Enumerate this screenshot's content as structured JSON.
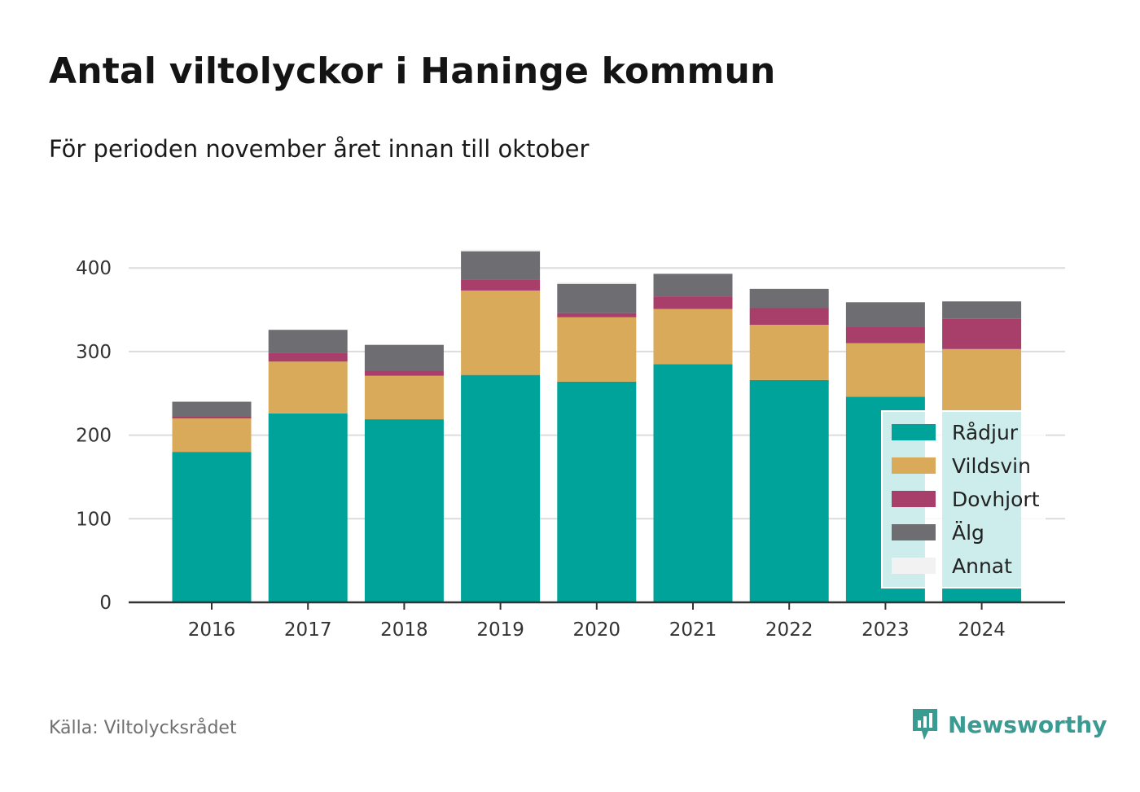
{
  "title": "Antal viltolyckor i Haninge kommun",
  "subtitle": "För perioden november året innan till oktober",
  "source": "Källa: Viltolycksrådet",
  "brand": {
    "name": "Newsworthy",
    "icon": "newsworthy-logo-icon",
    "color": "#3a9b93"
  },
  "chart_data": {
    "type": "bar",
    "stacked": true,
    "categories": [
      "2016",
      "2017",
      "2018",
      "2019",
      "2020",
      "2021",
      "2022",
      "2023",
      "2024"
    ],
    "series": [
      {
        "name": "Rådjur",
        "color": "#00a39a",
        "values": [
          180,
          226,
          219,
          272,
          264,
          285,
          266,
          246,
          229
        ]
      },
      {
        "name": "Vildsvin",
        "color": "#d9aa5a",
        "values": [
          40,
          62,
          52,
          101,
          77,
          66,
          66,
          64,
          74
        ]
      },
      {
        "name": "Dovhjort",
        "color": "#a83e6a",
        "values": [
          2,
          10,
          6,
          13,
          5,
          15,
          20,
          20,
          36
        ]
      },
      {
        "name": "Älg",
        "color": "#6e6d72",
        "values": [
          18,
          28,
          31,
          34,
          35,
          27,
          23,
          29,
          21
        ]
      },
      {
        "name": "Annat",
        "color": "#f2f2f2",
        "values": [
          0,
          0,
          0,
          2,
          2,
          0,
          0,
          0,
          0
        ]
      }
    ],
    "yticks": [
      0,
      100,
      200,
      300,
      400
    ],
    "ylim": [
      0,
      430
    ],
    "grid": true,
    "legend_position": "bottom-right"
  }
}
